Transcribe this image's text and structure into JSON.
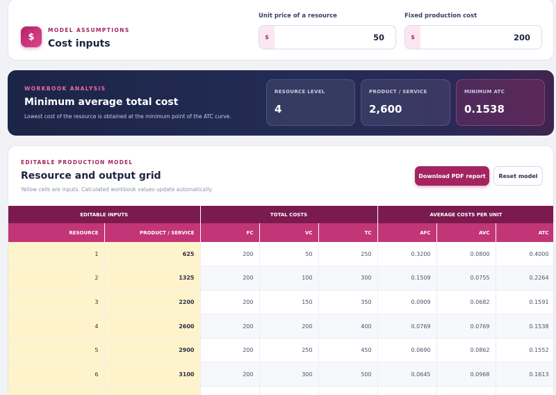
{
  "assumptions": {
    "kicker": "MODEL ASSUMPTIONS",
    "title": "Cost inputs",
    "icon": "dollar-icon",
    "unit_price": {
      "label": "Unit price of a resource",
      "prefix": "$",
      "value": "50"
    },
    "fixed_cost": {
      "label": "Fixed production cost",
      "prefix": "$",
      "value": "200"
    }
  },
  "analysis": {
    "kicker": "WORKBOOK ANALYSIS",
    "title": "Minimum average total cost",
    "subtitle": "Lowest cost of the resource is obtained at the minimum point of the ATC curve.",
    "metrics": [
      {
        "label": "RESOURCE LEVEL",
        "value": "4"
      },
      {
        "label": "PRODUCT / SERVICE",
        "value": "2,600"
      },
      {
        "label": "MINIMUM ATC",
        "value": "0.1538"
      }
    ]
  },
  "grid": {
    "kicker": "EDITABLE PRODUCTION MODEL",
    "title": "Resource and output grid",
    "subtitle": "Yellow cells are inputs. Calculated workbook values update automatically.",
    "download_label": "Download PDF report",
    "reset_label": "Reset model",
    "groups": [
      "EDITABLE INPUTS",
      "TOTAL COSTS",
      "AVERAGE COSTS PER UNIT"
    ],
    "columns": [
      "RESOURCE",
      "PRODUCT / SERVICE",
      "FC",
      "VC",
      "TC",
      "AFC",
      "AVC",
      "ATC"
    ],
    "rows": [
      [
        "1",
        "625",
        "200",
        "50",
        "250",
        "0.3200",
        "0.0800",
        "0.4000"
      ],
      [
        "2",
        "1325",
        "200",
        "100",
        "300",
        "0.1509",
        "0.0755",
        "0.2264"
      ],
      [
        "3",
        "2200",
        "200",
        "150",
        "350",
        "0.0909",
        "0.0682",
        "0.1591"
      ],
      [
        "4",
        "2600",
        "200",
        "200",
        "400",
        "0.0769",
        "0.0769",
        "0.1538"
      ],
      [
        "5",
        "2900",
        "200",
        "250",
        "450",
        "0.0690",
        "0.0862",
        "0.1552"
      ],
      [
        "6",
        "3100",
        "200",
        "300",
        "500",
        "0.0645",
        "0.0968",
        "0.1613"
      ],
      [
        "",
        "",
        "",
        "",
        "",
        "",
        "",
        ""
      ]
    ]
  }
}
